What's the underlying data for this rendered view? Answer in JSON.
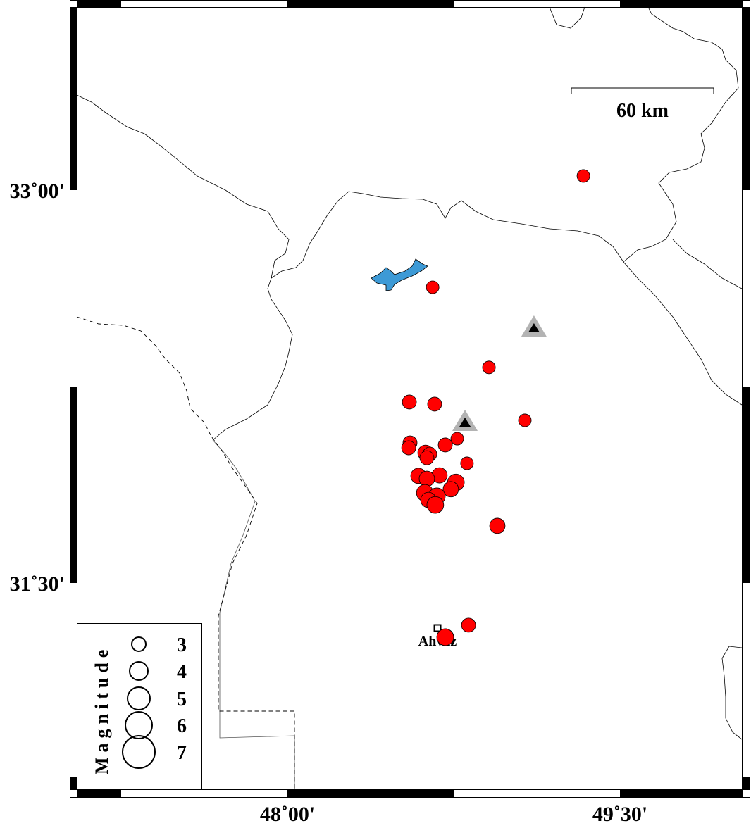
{
  "map": {
    "lon_range": [
      47.703,
      49.703
    ],
    "lat_range": [
      30.0,
      33.726
    ],
    "x_ticks": [
      {
        "lon": 48.0,
        "label": "48˚00'"
      },
      {
        "lon": 49.5,
        "label": "49˚30'"
      }
    ],
    "y_ticks": [
      {
        "lat": 33.0,
        "label": "33˚00'"
      },
      {
        "lat": 31.5,
        "label": "31˚30'"
      }
    ],
    "scale_bar": {
      "label": "60 km"
    },
    "city": {
      "name": "Ahvaz",
      "lon": 48.677,
      "lat": 31.328
    },
    "stations": [
      {
        "lon": 49.112,
        "lat": 32.473
      },
      {
        "lon": 48.801,
        "lat": 32.113
      }
    ],
    "events": [
      {
        "lon": 49.335,
        "lat": 33.054,
        "mag": 2.7
      },
      {
        "lon": 48.655,
        "lat": 32.629,
        "mag": 2.7
      },
      {
        "lon": 48.909,
        "lat": 32.323,
        "mag": 2.7
      },
      {
        "lon": 49.071,
        "lat": 32.121,
        "mag": 2.7
      },
      {
        "lon": 48.55,
        "lat": 32.191,
        "mag": 3.0
      },
      {
        "lon": 48.664,
        "lat": 32.183,
        "mag": 3.0
      },
      {
        "lon": 48.766,
        "lat": 32.051,
        "mag": 2.7
      },
      {
        "lon": 48.712,
        "lat": 32.027,
        "mag": 3.0
      },
      {
        "lon": 48.553,
        "lat": 32.035,
        "mag": 3.0
      },
      {
        "lon": 48.547,
        "lat": 32.016,
        "mag": 3.0
      },
      {
        "lon": 48.623,
        "lat": 31.997,
        "mag": 3.3
      },
      {
        "lon": 48.642,
        "lat": 31.992,
        "mag": 3.0
      },
      {
        "lon": 48.629,
        "lat": 31.978,
        "mag": 3.0
      },
      {
        "lon": 48.81,
        "lat": 31.957,
        "mag": 2.7
      },
      {
        "lon": 48.591,
        "lat": 31.909,
        "mag": 3.3
      },
      {
        "lon": 48.686,
        "lat": 31.911,
        "mag": 3.3
      },
      {
        "lon": 48.629,
        "lat": 31.898,
        "mag": 3.3
      },
      {
        "lon": 48.76,
        "lat": 31.884,
        "mag": 3.6
      },
      {
        "lon": 48.737,
        "lat": 31.858,
        "mag": 3.3
      },
      {
        "lon": 48.62,
        "lat": 31.844,
        "mag": 3.6
      },
      {
        "lon": 48.674,
        "lat": 31.831,
        "mag": 3.6
      },
      {
        "lon": 48.636,
        "lat": 31.817,
        "mag": 3.3
      },
      {
        "lon": 48.667,
        "lat": 31.798,
        "mag": 3.6
      },
      {
        "lon": 48.947,
        "lat": 31.718,
        "mag": 3.3
      },
      {
        "lon": 48.817,
        "lat": 31.339,
        "mag": 3.0
      },
      {
        "lon": 48.712,
        "lat": 31.293,
        "mag": 3.6
      }
    ],
    "legend": {
      "title": "Magnitude",
      "magnitudes": [
        3,
        4,
        5,
        6,
        7
      ],
      "labels": [
        "3",
        "4",
        "5",
        "6",
        "7"
      ]
    },
    "colors": {
      "event": "#ff0000",
      "lake": "#3d9ad6",
      "station_outer": "#b3b3b3",
      "station_inner": "#000000"
    }
  }
}
